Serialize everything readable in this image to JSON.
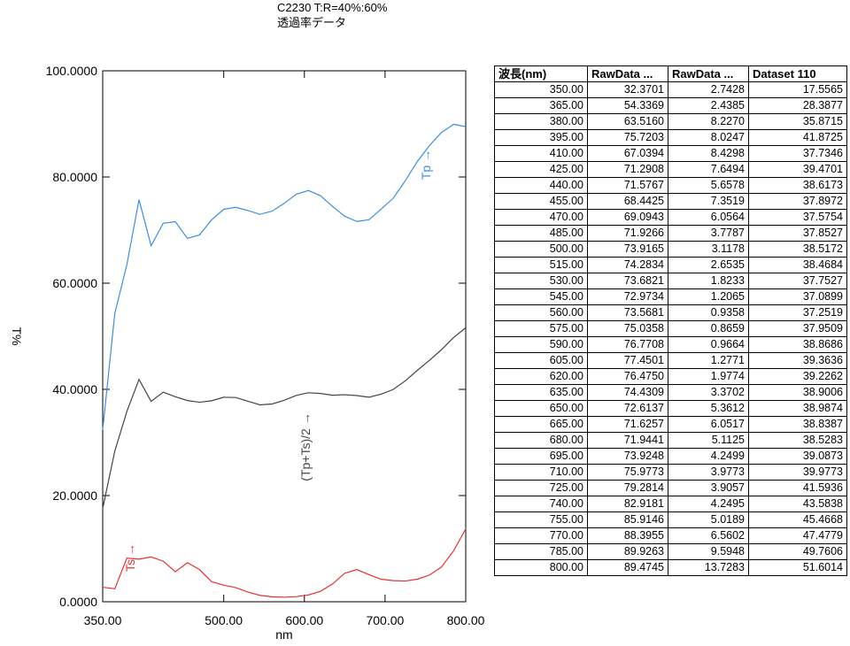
{
  "chart_data": {
    "type": "line",
    "title": "C2230 T:R=40%:60%",
    "subtitle": "透過率データ",
    "x_label": "nm",
    "y_label": "T%",
    "x": [
      350,
      365,
      380,
      395,
      410,
      425,
      440,
      455,
      470,
      485,
      500,
      515,
      530,
      545,
      560,
      575,
      590,
      605,
      620,
      635,
      650,
      665,
      680,
      695,
      710,
      725,
      740,
      755,
      770,
      785,
      800
    ],
    "series": [
      {
        "name": "Tp",
        "color": "#3a8ee6",
        "values": [
          32.3701,
          54.3369,
          63.516,
          75.7203,
          67.0394,
          71.2908,
          71.5767,
          68.4425,
          69.0943,
          71.9266,
          73.9165,
          74.2834,
          73.6821,
          72.9734,
          73.5681,
          75.0358,
          76.7708,
          77.4501,
          76.475,
          74.4309,
          72.6137,
          71.6257,
          71.9441,
          73.9248,
          75.9773,
          79.2814,
          82.9181,
          85.9146,
          88.3955,
          89.9263,
          89.4745
        ]
      },
      {
        "name": "Ts",
        "color": "#e8322f",
        "values": [
          2.7428,
          2.4385,
          8.227,
          8.0247,
          8.4298,
          7.6494,
          5.6578,
          7.3519,
          6.0564,
          3.7787,
          3.1178,
          2.6535,
          1.8233,
          1.2065,
          0.9358,
          0.8659,
          0.9664,
          1.2771,
          1.9774,
          3.3702,
          5.3612,
          6.0517,
          5.1125,
          4.2499,
          3.9773,
          3.9057,
          4.2495,
          5.0189,
          6.5602,
          9.5948,
          13.7283
        ]
      },
      {
        "name": "(Tp+Ts)/2",
        "color": "#444444",
        "values": [
          17.5565,
          28.3877,
          35.8715,
          41.8725,
          37.7346,
          39.4701,
          38.6173,
          37.8972,
          37.5754,
          37.8527,
          38.5172,
          38.4684,
          37.7527,
          37.0899,
          37.2519,
          37.9509,
          38.8686,
          39.3636,
          39.2262,
          38.9006,
          38.9874,
          38.8387,
          38.5283,
          39.0873,
          39.9773,
          41.5936,
          43.5838,
          45.4668,
          47.4779,
          49.7606,
          51.6014
        ]
      }
    ],
    "annotations": [
      "Tp →",
      "(Tp+Ts)/2 →",
      "Ts →"
    ],
    "xlim": [
      350,
      800
    ],
    "xticks": [
      {
        "value": 350,
        "label": "350.00"
      },
      {
        "value": 500,
        "label": "500.00"
      },
      {
        "value": 600,
        "label": "600.00"
      },
      {
        "value": 700,
        "label": "700.00"
      },
      {
        "value": 800,
        "label": "800.00"
      }
    ],
    "ylim": [
      0,
      100
    ],
    "yticks": [
      {
        "value": 0,
        "label": "0.0000"
      },
      {
        "value": 20,
        "label": "20.0000"
      },
      {
        "value": 40,
        "label": "40.0000"
      },
      {
        "value": 60,
        "label": "60.0000"
      },
      {
        "value": 80,
        "label": "80.0000"
      },
      {
        "value": 100,
        "label": "100.0000"
      }
    ],
    "grid": false
  },
  "table": {
    "header": [
      "波長(nm)",
      "RawData ...",
      "RawData ...",
      "Dataset 110"
    ],
    "rows": [
      [
        "350.00",
        "32.3701",
        "2.7428",
        "17.5565"
      ],
      [
        "365.00",
        "54.3369",
        "2.4385",
        "28.3877"
      ],
      [
        "380.00",
        "63.5160",
        "8.2270",
        "35.8715"
      ],
      [
        "395.00",
        "75.7203",
        "8.0247",
        "41.8725"
      ],
      [
        "410.00",
        "67.0394",
        "8.4298",
        "37.7346"
      ],
      [
        "425.00",
        "71.2908",
        "7.6494",
        "39.4701"
      ],
      [
        "440.00",
        "71.5767",
        "5.6578",
        "38.6173"
      ],
      [
        "455.00",
        "68.4425",
        "7.3519",
        "37.8972"
      ],
      [
        "470.00",
        "69.0943",
        "6.0564",
        "37.5754"
      ],
      [
        "485.00",
        "71.9266",
        "3.7787",
        "37.8527"
      ],
      [
        "500.00",
        "73.9165",
        "3.1178",
        "38.5172"
      ],
      [
        "515.00",
        "74.2834",
        "2.6535",
        "38.4684"
      ],
      [
        "530.00",
        "73.6821",
        "1.8233",
        "37.7527"
      ],
      [
        "545.00",
        "72.9734",
        "1.2065",
        "37.0899"
      ],
      [
        "560.00",
        "73.5681",
        "0.9358",
        "37.2519"
      ],
      [
        "575.00",
        "75.0358",
        "0.8659",
        "37.9509"
      ],
      [
        "590.00",
        "76.7708",
        "0.9664",
        "38.8686"
      ],
      [
        "605.00",
        "77.4501",
        "1.2771",
        "39.3636"
      ],
      [
        "620.00",
        "76.4750",
        "1.9774",
        "39.2262"
      ],
      [
        "635.00",
        "74.4309",
        "3.3702",
        "38.9006"
      ],
      [
        "650.00",
        "72.6137",
        "5.3612",
        "38.9874"
      ],
      [
        "665.00",
        "71.6257",
        "6.0517",
        "38.8387"
      ],
      [
        "680.00",
        "71.9441",
        "5.1125",
        "38.5283"
      ],
      [
        "695.00",
        "73.9248",
        "4.2499",
        "39.0873"
      ],
      [
        "710.00",
        "75.9773",
        "3.9773",
        "39.9773"
      ],
      [
        "725.00",
        "79.2814",
        "3.9057",
        "41.5936"
      ],
      [
        "740.00",
        "82.9181",
        "4.2495",
        "43.5838"
      ],
      [
        "755.00",
        "85.9146",
        "5.0189",
        "45.4668"
      ],
      [
        "770.00",
        "88.3955",
        "6.5602",
        "47.4779"
      ],
      [
        "785.00",
        "89.9263",
        "9.5948",
        "49.7606"
      ],
      [
        "800.00",
        "89.4745",
        "13.7283",
        "51.6014"
      ]
    ]
  }
}
